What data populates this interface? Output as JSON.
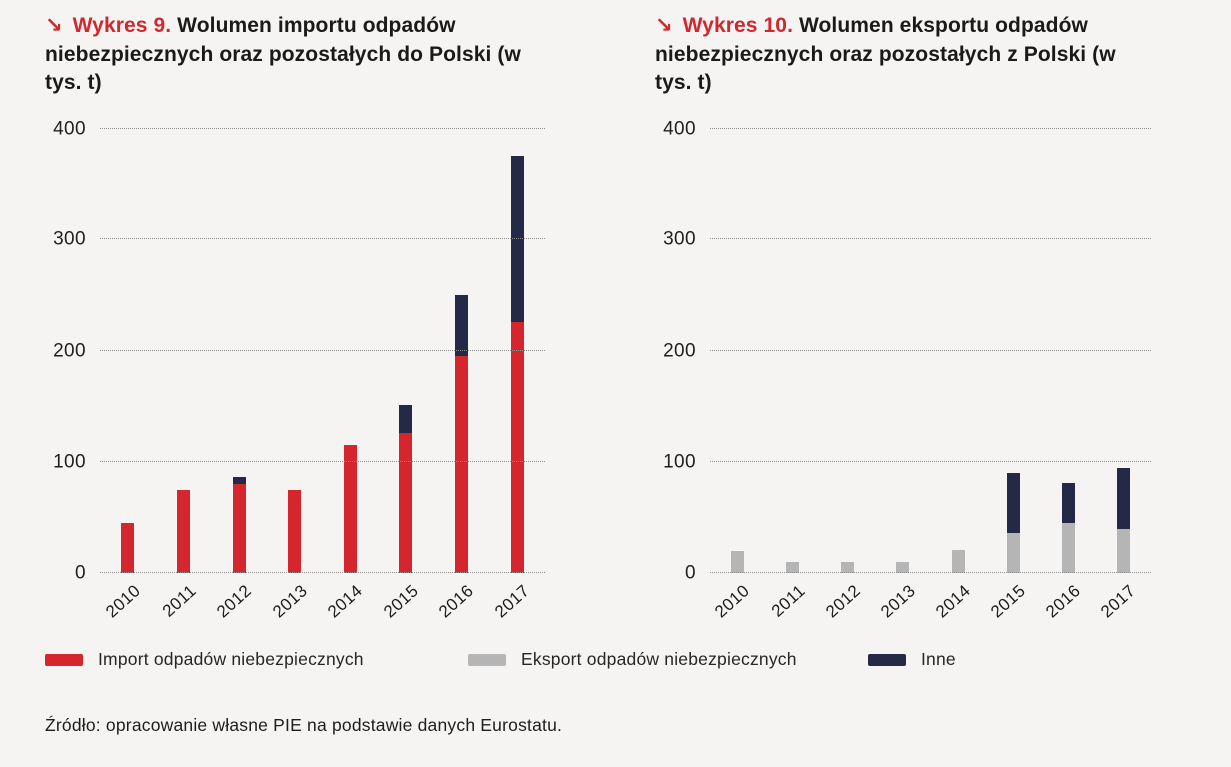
{
  "page": {
    "background": "#f5f4f2",
    "source_note": "Źródło: opracowanie własne PIE na podstawie danych Eurostatu."
  },
  "colors": {
    "accent_red": "#d0282f",
    "bar_red": "#d5262e",
    "bar_navy": "#232946",
    "bar_gray": "#b5b5b5",
    "gridline": "#8f8f8f",
    "text": "#1a1a1a"
  },
  "headers": [
    {
      "arrow": "↘",
      "label": "Wykres 9.",
      "title": "Wolumen importu odpadów niebezpiecznych oraz pozostałych do Polski (w tys. t)"
    },
    {
      "arrow": "↘",
      "label": "Wykres 10.",
      "title": "Wolumen eksportu odpadów niebezpiecznych oraz pozostałych z Polski (w tys. t)"
    }
  ],
  "legend": {
    "items": [
      {
        "label": "Import odpadów niebezpiecznych",
        "color": "#d5262e"
      },
      {
        "label": "Eksport odpadów niebezpiecznych",
        "color": "#b5b5b5"
      },
      {
        "label": "Inne",
        "color": "#232946"
      }
    ]
  },
  "chart_data": [
    {
      "type": "bar",
      "stacked": true,
      "title": "Wykres 9. Wolumen importu odpadów niebezpiecznych oraz pozostałych do Polski (w tys. t)",
      "unit": "tys. t",
      "categories": [
        "2010",
        "2011",
        "2012",
        "2013",
        "2014",
        "2015",
        "2016",
        "2017"
      ],
      "series": [
        {
          "name": "Import odpadów niebezpiecznych",
          "color": "#d5262e",
          "values": [
            45,
            75,
            80,
            75,
            115,
            126,
            195,
            226
          ]
        },
        {
          "name": "Inne",
          "color": "#232946",
          "values": [
            0,
            0,
            6,
            0,
            0,
            25,
            55,
            149
          ]
        }
      ],
      "xlabel": "",
      "ylabel": "",
      "ylim": [
        0,
        400
      ],
      "yticks": [
        0,
        100,
        200,
        300,
        400
      ],
      "grid": "horizontal-dotted",
      "legend_position": "bottom-shared"
    },
    {
      "type": "bar",
      "stacked": true,
      "title": "Wykres 10. Wolumen eksportu odpadów niebezpiecznych oraz pozostałych z Polski (w tys. t)",
      "unit": "tys. t",
      "categories": [
        "2010",
        "2011",
        "2012",
        "2013",
        "2014",
        "2015",
        "2016",
        "2017"
      ],
      "series": [
        {
          "name": "Eksport odpadów niebezpiecznych",
          "color": "#b5b5b5",
          "values": [
            20,
            10,
            10,
            10,
            21,
            36,
            45,
            40
          ]
        },
        {
          "name": "Inne",
          "color": "#232946",
          "values": [
            0,
            0,
            0,
            0,
            0,
            54,
            36,
            54
          ]
        }
      ],
      "xlabel": "",
      "ylabel": "",
      "ylim": [
        0,
        400
      ],
      "yticks": [
        0,
        100,
        200,
        300,
        400
      ],
      "grid": "horizontal-dotted",
      "legend_position": "bottom-shared"
    }
  ]
}
